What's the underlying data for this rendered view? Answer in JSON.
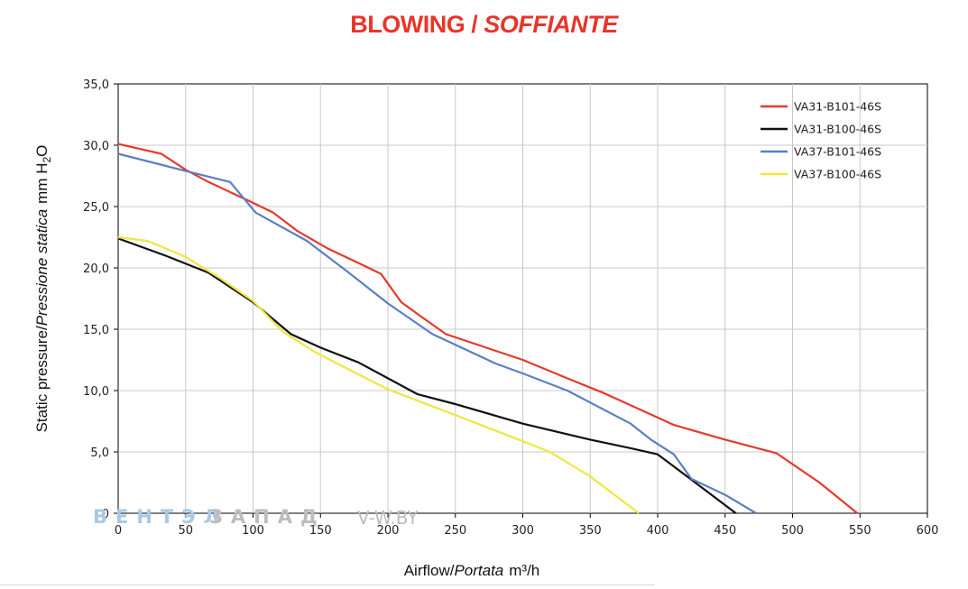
{
  "title": {
    "main": "BLOWING / ",
    "italic": "SOFFIANTE"
  },
  "watermark": {
    "part1": "ВЕНТЭЛ",
    "part2": "ЗАПАД",
    "part3": "V-W.BY"
  },
  "colors": {
    "title": "#e8352a"
  },
  "chart_data": {
    "type": "line",
    "xlabel": "Airflow/",
    "xlabel_italic": "Portata",
    "xlabel_unit": "m³/h",
    "ylabel": "Static pressure/",
    "ylabel_italic": "Pressione statica",
    "ylabel_unit": "mm H",
    "ylabel_sub": "2",
    "ylabel_end": "O",
    "xlim": [
      0,
      600
    ],
    "ylim": [
      0,
      35
    ],
    "x_ticks": [
      "0",
      "50",
      "100",
      "150",
      "200",
      "250",
      "300",
      "350",
      "400",
      "450",
      "500",
      "550",
      "600"
    ],
    "y_ticks": [
      "0",
      "5,0",
      "10,0",
      "15,0",
      "20,0",
      "25,0",
      "30,0",
      "35,0"
    ],
    "grid": true,
    "legend_position": "top-right",
    "series": [
      {
        "name": "VA31-B101-46S",
        "color": "#e53a2c",
        "points": [
          [
            0,
            30.1
          ],
          [
            32,
            29.3
          ],
          [
            50,
            28.0
          ],
          [
            67,
            27.0
          ],
          [
            100,
            25.3
          ],
          [
            115,
            24.5
          ],
          [
            133,
            23.0
          ],
          [
            155,
            21.6
          ],
          [
            180,
            20.3
          ],
          [
            195,
            19.5
          ],
          [
            210,
            17.2
          ],
          [
            225,
            16.0
          ],
          [
            243,
            14.6
          ],
          [
            270,
            13.6
          ],
          [
            300,
            12.5
          ],
          [
            333,
            11.0
          ],
          [
            360,
            9.8
          ],
          [
            390,
            8.3
          ],
          [
            412,
            7.2
          ],
          [
            450,
            6.0
          ],
          [
            488,
            4.9
          ],
          [
            520,
            2.5
          ],
          [
            548,
            0
          ]
        ]
      },
      {
        "name": "VA31-B100-46S",
        "color": "#111111",
        "points": [
          [
            0,
            22.4
          ],
          [
            35,
            21.0
          ],
          [
            67,
            19.6
          ],
          [
            100,
            17.2
          ],
          [
            128,
            14.6
          ],
          [
            150,
            13.5
          ],
          [
            178,
            12.3
          ],
          [
            200,
            11.0
          ],
          [
            222,
            9.7
          ],
          [
            250,
            8.9
          ],
          [
            300,
            7.3
          ],
          [
            350,
            6.0
          ],
          [
            380,
            5.3
          ],
          [
            400,
            4.8
          ],
          [
            458,
            0
          ]
        ]
      },
      {
        "name": "VA37-B101-46S",
        "color": "#5b7fc2",
        "points": [
          [
            0,
            29.3
          ],
          [
            25,
            28.6
          ],
          [
            50,
            27.9
          ],
          [
            83,
            27.0
          ],
          [
            102,
            24.5
          ],
          [
            140,
            22.2
          ],
          [
            170,
            19.7
          ],
          [
            200,
            17.1
          ],
          [
            233,
            14.6
          ],
          [
            280,
            12.2
          ],
          [
            300,
            11.4
          ],
          [
            333,
            10.0
          ],
          [
            380,
            7.3
          ],
          [
            395,
            6.0
          ],
          [
            412,
            4.8
          ],
          [
            425,
            2.8
          ],
          [
            450,
            1.5
          ],
          [
            473,
            0
          ]
        ]
      },
      {
        "name": "VA37-B100-46S",
        "color": "#f0e640",
        "points": [
          [
            0,
            22.5
          ],
          [
            22,
            22.2
          ],
          [
            50,
            20.9
          ],
          [
            75,
            19.2
          ],
          [
            100,
            17.3
          ],
          [
            122,
            14.8
          ],
          [
            145,
            13.2
          ],
          [
            166,
            12.0
          ],
          [
            200,
            10.1
          ],
          [
            250,
            8.0
          ],
          [
            290,
            6.3
          ],
          [
            320,
            5.0
          ],
          [
            350,
            3.0
          ],
          [
            386,
            0
          ]
        ]
      }
    ]
  }
}
